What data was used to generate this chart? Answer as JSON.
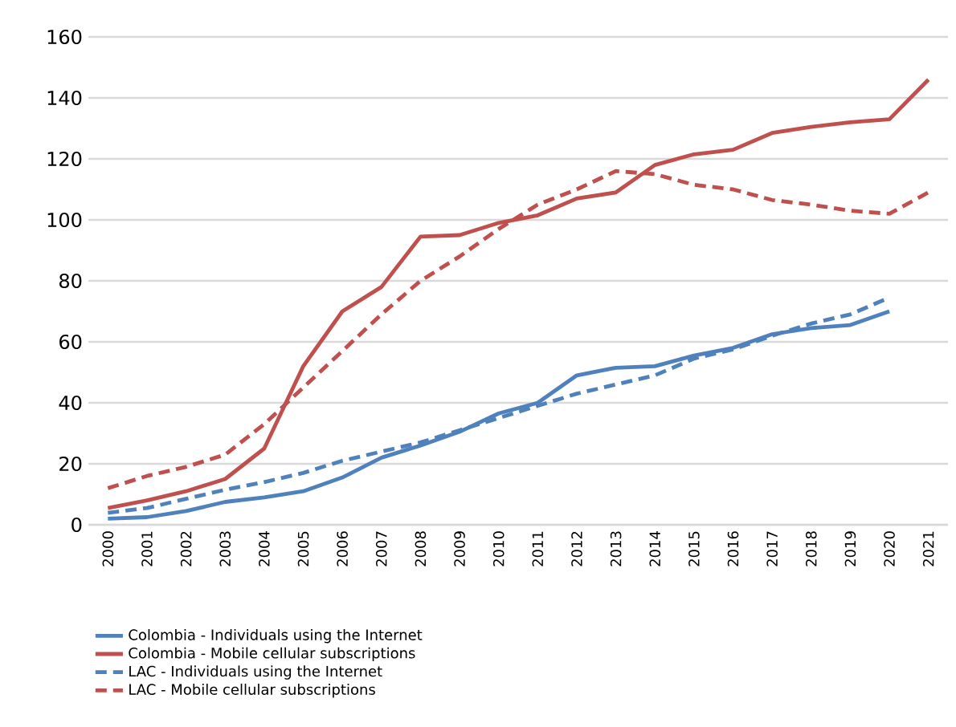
{
  "chart_data": {
    "type": "line",
    "categories": [
      "2000",
      "2001",
      "2002",
      "2003",
      "2004",
      "2005",
      "2006",
      "2007",
      "2008",
      "2009",
      "2010",
      "2011",
      "2012",
      "2013",
      "2014",
      "2015",
      "2016",
      "2017",
      "2018",
      "2019",
      "2020",
      "2021"
    ],
    "series": [
      {
        "name": "Colombia - Individuals using the Internet",
        "color": "#4f81bd",
        "line_style": "solid",
        "values": [
          2,
          2.5,
          4.5,
          7.5,
          9,
          11,
          15.5,
          22,
          26,
          30.5,
          36.5,
          40,
          49,
          51.5,
          52,
          55.5,
          58,
          62.5,
          64.5,
          65.5,
          70,
          null
        ]
      },
      {
        "name": "Colombia - Mobile cellular subscriptions",
        "color": "#c0504d",
        "line_style": "solid",
        "values": [
          5.5,
          8,
          11,
          15,
          25,
          52,
          70,
          78,
          94.5,
          95,
          99,
          101.5,
          107,
          109,
          118,
          121.5,
          123,
          128.5,
          130.5,
          132,
          133,
          146
        ]
      },
      {
        "name": "LAC - Individuals using the Internet",
        "color": "#4f81bd",
        "line_style": "dashed",
        "values": [
          3.9,
          5.5,
          8.5,
          11.5,
          14,
          17,
          21,
          24,
          27,
          31,
          35,
          39,
          43,
          46,
          49,
          54.5,
          57.5,
          62,
          66,
          69,
          74.5,
          null
        ]
      },
      {
        "name": "LAC - Mobile cellular subscriptions",
        "color": "#c0504d",
        "line_style": "dashed",
        "values": [
          12,
          16,
          19,
          23,
          33,
          45,
          57,
          69,
          80,
          88,
          97,
          105,
          110,
          116,
          115,
          111.5,
          110,
          106.5,
          105,
          103,
          102,
          109
        ]
      }
    ],
    "ylim": [
      0,
      160
    ],
    "yticks": [
      0,
      20,
      40,
      60,
      80,
      100,
      120,
      140,
      160
    ],
    "grid": "y",
    "legend": "bottom",
    "marker": "none"
  }
}
